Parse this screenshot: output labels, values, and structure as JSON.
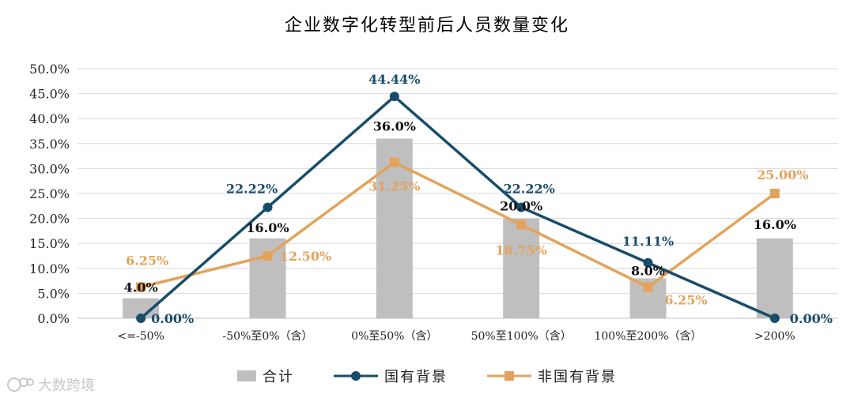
{
  "title": "企业数字化转型前后人员数量变化",
  "watermark": "大数跨境",
  "colors": {
    "bar": "#bfbfbf",
    "guoyou": "#184c6b",
    "feiguoyou": "#e3a35b",
    "grid": "#d9d9d9"
  },
  "chart_data": {
    "type": "bar",
    "title": "企业数字化转型前后人员数量变化",
    "categories": [
      "<=-50%",
      "-50%至0%（含）",
      "0%至50%（含）",
      "50%至100%（含）",
      "100%至200%（含）",
      ">200%"
    ],
    "ylim": [
      0,
      50
    ],
    "yticks": [
      "0.0%",
      "5.0%",
      "10.0%",
      "15.0%",
      "20.0%",
      "25.0%",
      "30.0%",
      "35.0%",
      "40.0%",
      "45.0%",
      "50.0%"
    ],
    "grid": true,
    "legend_position": "bottom",
    "series": [
      {
        "name": "合计",
        "type": "bar",
        "values": [
          4.0,
          16.0,
          36.0,
          20.0,
          8.0,
          16.0
        ],
        "labels": [
          "4.0%",
          "16.0%",
          "36.0%",
          "20.0%",
          "8.0%",
          "16.0%"
        ]
      },
      {
        "name": "国有背景",
        "type": "line",
        "marker": "circle",
        "values": [
          0.0,
          22.22,
          44.44,
          22.22,
          11.11,
          0.0
        ],
        "labels": [
          "0.00%",
          "22.22%",
          "44.44%",
          "22.22%",
          "11.11%",
          "0.00%"
        ]
      },
      {
        "name": "非国有背景",
        "type": "line",
        "marker": "square",
        "values": [
          6.25,
          12.5,
          31.25,
          18.75,
          6.25,
          25.0
        ],
        "labels": [
          "6.25%",
          "12.50%",
          "31.25%",
          "18.75%",
          "6.25%",
          "25.00%"
        ]
      }
    ]
  }
}
